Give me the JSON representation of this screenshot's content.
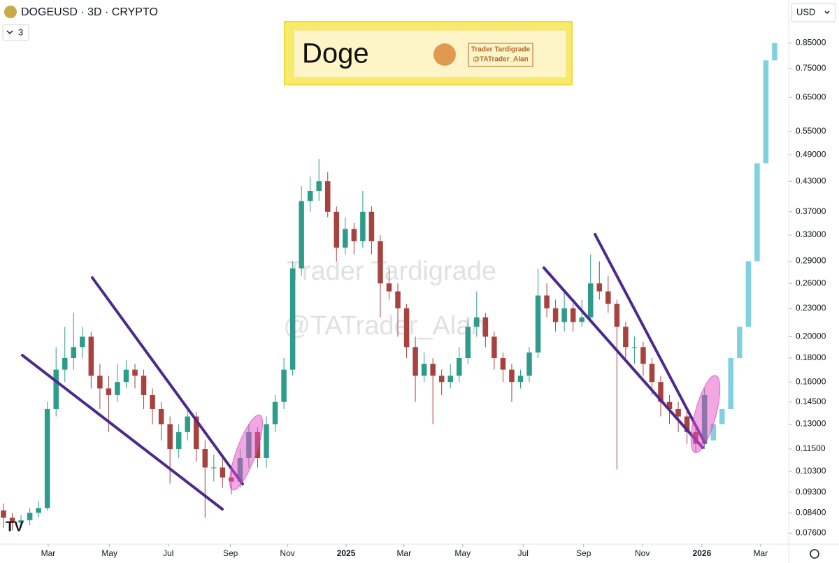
{
  "header": {
    "symbol": "DOGEUSD · 3D · CRYPTO",
    "interval": "3",
    "currency": "USD"
  },
  "banner": {
    "title": "Doge",
    "brand_line1": "Trader Tardigrade",
    "brand_line2": "@TATrader_Alan"
  },
  "watermark": {
    "line1": "Trader Tardigrade",
    "line2": "@TATrader_Alan"
  },
  "chart_data": {
    "type": "candlestick",
    "log_scale": true,
    "up_color": "#2e9c8a",
    "down_color": "#a7423f",
    "x": [
      0,
      1,
      2,
      3,
      4,
      5,
      6,
      7,
      8,
      9,
      10,
      11,
      12,
      13,
      14,
      15,
      16,
      17,
      18,
      19,
      20,
      21,
      22,
      23,
      24,
      25,
      26,
      27,
      28,
      29,
      30,
      31,
      32,
      33,
      34,
      35,
      36,
      37,
      38,
      39,
      40,
      41,
      42,
      43,
      44,
      45,
      46,
      47,
      48,
      49,
      50,
      51,
      52,
      53,
      54,
      55,
      56,
      57,
      58,
      59,
      60,
      61,
      62,
      63,
      64,
      65,
      66,
      67,
      68,
      69,
      70,
      71,
      72,
      73,
      74,
      75,
      76,
      77,
      78,
      79,
      80
    ],
    "open": [
      0.085,
      0.082,
      0.08,
      0.081,
      0.084,
      0.086,
      0.14,
      0.17,
      0.18,
      0.19,
      0.2,
      0.165,
      0.155,
      0.15,
      0.16,
      0.17,
      0.165,
      0.15,
      0.14,
      0.13,
      0.115,
      0.125,
      0.135,
      0.115,
      0.105,
      0.105,
      0.1,
      0.098,
      0.11,
      0.125,
      0.11,
      0.13,
      0.145,
      0.17,
      0.28,
      0.39,
      0.41,
      0.43,
      0.37,
      0.31,
      0.34,
      0.32,
      0.37,
      0.32,
      0.26,
      0.25,
      0.23,
      0.19,
      0.165,
      0.175,
      0.165,
      0.16,
      0.165,
      0.18,
      0.21,
      0.22,
      0.2,
      0.18,
      0.17,
      0.16,
      0.165,
      0.185,
      0.245,
      0.23,
      0.215,
      0.23,
      0.215,
      0.22,
      0.26,
      0.25,
      0.235,
      0.21,
      0.19,
      0.19,
      0.175,
      0.16,
      0.145,
      0.14,
      0.135,
      0.125,
      0.118
    ],
    "high": [
      0.088,
      0.084,
      0.083,
      0.086,
      0.089,
      0.145,
      0.19,
      0.21,
      0.225,
      0.21,
      0.205,
      0.175,
      0.165,
      0.175,
      0.178,
      0.175,
      0.17,
      0.155,
      0.145,
      0.135,
      0.13,
      0.14,
      0.138,
      0.12,
      0.112,
      0.11,
      0.105,
      0.115,
      0.13,
      0.128,
      0.135,
      0.15,
      0.18,
      0.29,
      0.42,
      0.44,
      0.48,
      0.45,
      0.38,
      0.36,
      0.35,
      0.41,
      0.38,
      0.33,
      0.28,
      0.26,
      0.235,
      0.2,
      0.185,
      0.18,
      0.17,
      0.175,
      0.19,
      0.22,
      0.25,
      0.225,
      0.205,
      0.185,
      0.175,
      0.17,
      0.19,
      0.28,
      0.26,
      0.24,
      0.25,
      0.235,
      0.24,
      0.3,
      0.29,
      0.27,
      0.24,
      0.215,
      0.2,
      0.195,
      0.18,
      0.165,
      0.15,
      0.145,
      0.14,
      0.128,
      0.155
    ],
    "low": [
      0.078,
      0.077,
      0.078,
      0.079,
      0.082,
      0.085,
      0.135,
      0.16,
      0.17,
      0.18,
      0.155,
      0.14,
      0.125,
      0.145,
      0.155,
      0.155,
      0.14,
      0.13,
      0.12,
      0.097,
      0.11,
      0.12,
      0.108,
      0.082,
      0.098,
      0.095,
      0.092,
      0.095,
      0.105,
      0.105,
      0.105,
      0.125,
      0.14,
      0.165,
      0.27,
      0.37,
      0.39,
      0.36,
      0.29,
      0.3,
      0.3,
      0.31,
      0.3,
      0.22,
      0.24,
      0.2,
      0.18,
      0.145,
      0.16,
      0.13,
      0.15,
      0.155,
      0.16,
      0.175,
      0.2,
      0.19,
      0.17,
      0.16,
      0.145,
      0.155,
      0.16,
      0.18,
      0.22,
      0.205,
      0.205,
      0.205,
      0.21,
      0.215,
      0.24,
      0.225,
      0.104,
      0.18,
      0.175,
      0.165,
      0.15,
      0.135,
      0.13,
      0.125,
      0.118,
      0.113,
      0.115
    ],
    "close": [
      0.082,
      0.08,
      0.081,
      0.084,
      0.086,
      0.14,
      0.17,
      0.18,
      0.19,
      0.2,
      0.165,
      0.155,
      0.15,
      0.16,
      0.17,
      0.165,
      0.15,
      0.14,
      0.13,
      0.115,
      0.125,
      0.135,
      0.115,
      0.105,
      0.105,
      0.1,
      0.098,
      0.11,
      0.125,
      0.11,
      0.13,
      0.145,
      0.17,
      0.28,
      0.39,
      0.41,
      0.43,
      0.37,
      0.31,
      0.34,
      0.32,
      0.37,
      0.32,
      0.26,
      0.25,
      0.23,
      0.19,
      0.165,
      0.175,
      0.165,
      0.16,
      0.165,
      0.18,
      0.21,
      0.22,
      0.2,
      0.18,
      0.17,
      0.16,
      0.165,
      0.185,
      0.245,
      0.23,
      0.215,
      0.23,
      0.215,
      0.22,
      0.26,
      0.25,
      0.235,
      0.21,
      0.19,
      0.19,
      0.175,
      0.16,
      0.145,
      0.14,
      0.135,
      0.125,
      0.118,
      0.15
    ],
    "projection": {
      "color": "#7fd0e0",
      "x": [
        81,
        82,
        83,
        84,
        85,
        86,
        87,
        88
      ],
      "open": [
        0.12,
        0.13,
        0.14,
        0.18,
        0.21,
        0.29,
        0.47,
        0.78
      ],
      "close": [
        0.13,
        0.14,
        0.18,
        0.21,
        0.29,
        0.47,
        0.78,
        0.85
      ]
    },
    "xlim": [
      -0.4,
      89.6
    ],
    "xticks": [
      {
        "value": 5.1,
        "label": "Mar"
      },
      {
        "value": 12.1,
        "label": "May"
      },
      {
        "value": 18.8,
        "label": "Jul"
      },
      {
        "value": 25.9,
        "label": "Sep"
      },
      {
        "value": 32.4,
        "label": "Nov"
      },
      {
        "value": 39.1,
        "label": "2025"
      },
      {
        "value": 45.7,
        "label": "Mar"
      },
      {
        "value": 52.4,
        "label": "May"
      },
      {
        "value": 59.3,
        "label": "Jul"
      },
      {
        "value": 66.2,
        "label": "Sep"
      },
      {
        "value": 72.9,
        "label": "Nov"
      },
      {
        "value": 79.7,
        "label": "2026"
      },
      {
        "value": 86.4,
        "label": "Mar"
      }
    ],
    "ylim": [
      0.072,
      1.05
    ],
    "yticks": [
      {
        "value": 0.85,
        "label": "0.85000"
      },
      {
        "value": 0.75,
        "label": "0.75000"
      },
      {
        "value": 0.65,
        "label": "0.65000"
      },
      {
        "value": 0.55,
        "label": "0.55000"
      },
      {
        "value": 0.49,
        "label": "0.49000"
      },
      {
        "value": 0.43,
        "label": "0.43000"
      },
      {
        "value": 0.37,
        "label": "0.37000"
      },
      {
        "value": 0.33,
        "label": "0.33000"
      },
      {
        "value": 0.29,
        "label": "0.29000"
      },
      {
        "value": 0.26,
        "label": "0.26000"
      },
      {
        "value": 0.23,
        "label": "0.23000"
      },
      {
        "value": 0.2,
        "label": "0.20000"
      },
      {
        "value": 0.18,
        "label": "0.18000"
      },
      {
        "value": 0.16,
        "label": "0.16000"
      },
      {
        "value": 0.145,
        "label": "0.14500"
      },
      {
        "value": 0.13,
        "label": "0.13000"
      },
      {
        "value": 0.115,
        "label": "0.11500"
      },
      {
        "value": 0.103,
        "label": "0.10300"
      },
      {
        "value": 0.093,
        "label": "0.09300"
      },
      {
        "value": 0.084,
        "label": "0.08400"
      },
      {
        "value": 0.076,
        "label": "0.07600"
      }
    ]
  }
}
